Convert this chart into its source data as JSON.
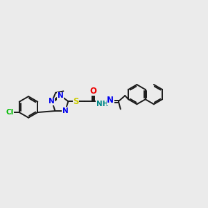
{
  "bg_color": "#ebebeb",
  "bond_color": "#1a1a1a",
  "N_color": "#0000ee",
  "O_color": "#ee0000",
  "S_color": "#cccc00",
  "Cl_color": "#00bb00",
  "NH_color": "#008888",
  "lw": 1.4,
  "fs": 7.5,
  "xlim": [
    0,
    10
  ],
  "ylim": [
    2.5,
    7.5
  ]
}
